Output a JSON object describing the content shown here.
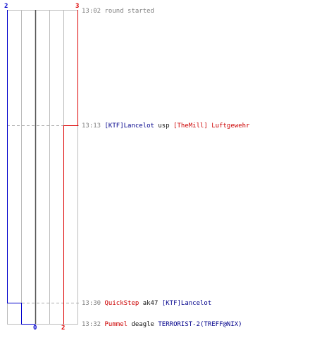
{
  "counts": {
    "blue_start": "2",
    "red_start": "3",
    "blue_end": "0",
    "red_end": "2"
  },
  "events": [
    {
      "time": "13:02",
      "message": "round started"
    },
    {
      "time": "13:13",
      "killer": "[KTF]Lancelot",
      "weapon": "usp",
      "victim": "[TheMill] Luftgewehr"
    },
    {
      "time": "13:30",
      "killer": "QuickStep",
      "weapon": "ak47",
      "victim": "[KTF]Lancelot"
    },
    {
      "time": "13:32",
      "killer": "Pummel",
      "weapon": "deagle",
      "victim": "TERRORIST-2(TREFF@NIX)"
    }
  ],
  "colors": {
    "blue_team": "#0000cc",
    "red_team": "#dd0000",
    "grid": "#bbbbbb",
    "center": "#555555",
    "dashed": "#aaaaaa",
    "time_text": "#808080"
  }
}
